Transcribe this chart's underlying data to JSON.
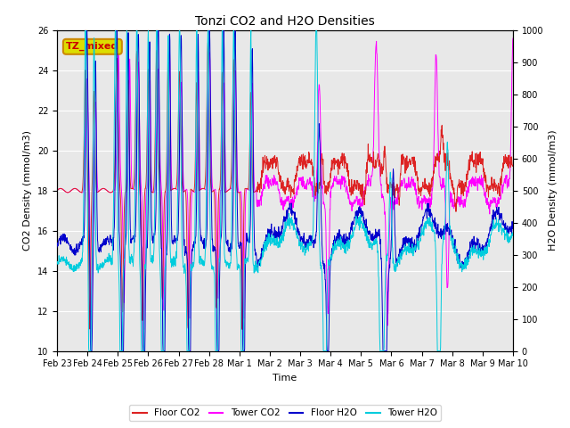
{
  "title": "Tonzi CO2 and H2O Densities",
  "xlabel": "Time",
  "ylabel_left": "CO2 Density (mmol/m3)",
  "ylabel_right": "H2O Density (mmol/m3)",
  "annotation": "TZ_mixed",
  "annotation_facecolor": "#dddd00",
  "annotation_edgecolor": "#cc8800",
  "annotation_text_color": "#cc0000",
  "ylim_left": [
    10,
    26
  ],
  "ylim_right": [
    0,
    1000
  ],
  "yticks_left": [
    10,
    12,
    14,
    16,
    18,
    20,
    22,
    24,
    26
  ],
  "yticks_right": [
    0,
    100,
    200,
    300,
    400,
    500,
    600,
    700,
    800,
    900,
    1000
  ],
  "xtick_labels": [
    "Feb 23",
    "Feb 24",
    "Feb 25",
    "Feb 26",
    "Feb 27",
    "Feb 28",
    "Mar 1",
    "Mar 2",
    "Mar 3",
    "Mar 4",
    "Mar 5",
    "Mar 6",
    "Mar 7",
    "Mar 8",
    "Mar 9",
    "Mar 10"
  ],
  "colors": {
    "floor_co2": "#dd2222",
    "tower_co2": "#ff00ff",
    "floor_h2o": "#0000cc",
    "tower_h2o": "#00ccdd"
  },
  "legend_labels": [
    "Floor CO2",
    "Tower CO2",
    "Floor H2O",
    "Tower H2O"
  ],
  "background_color": "#e8e8e8",
  "grid_color": "white",
  "n_points": 1600,
  "figsize": [
    6.4,
    4.8
  ],
  "dpi": 100
}
